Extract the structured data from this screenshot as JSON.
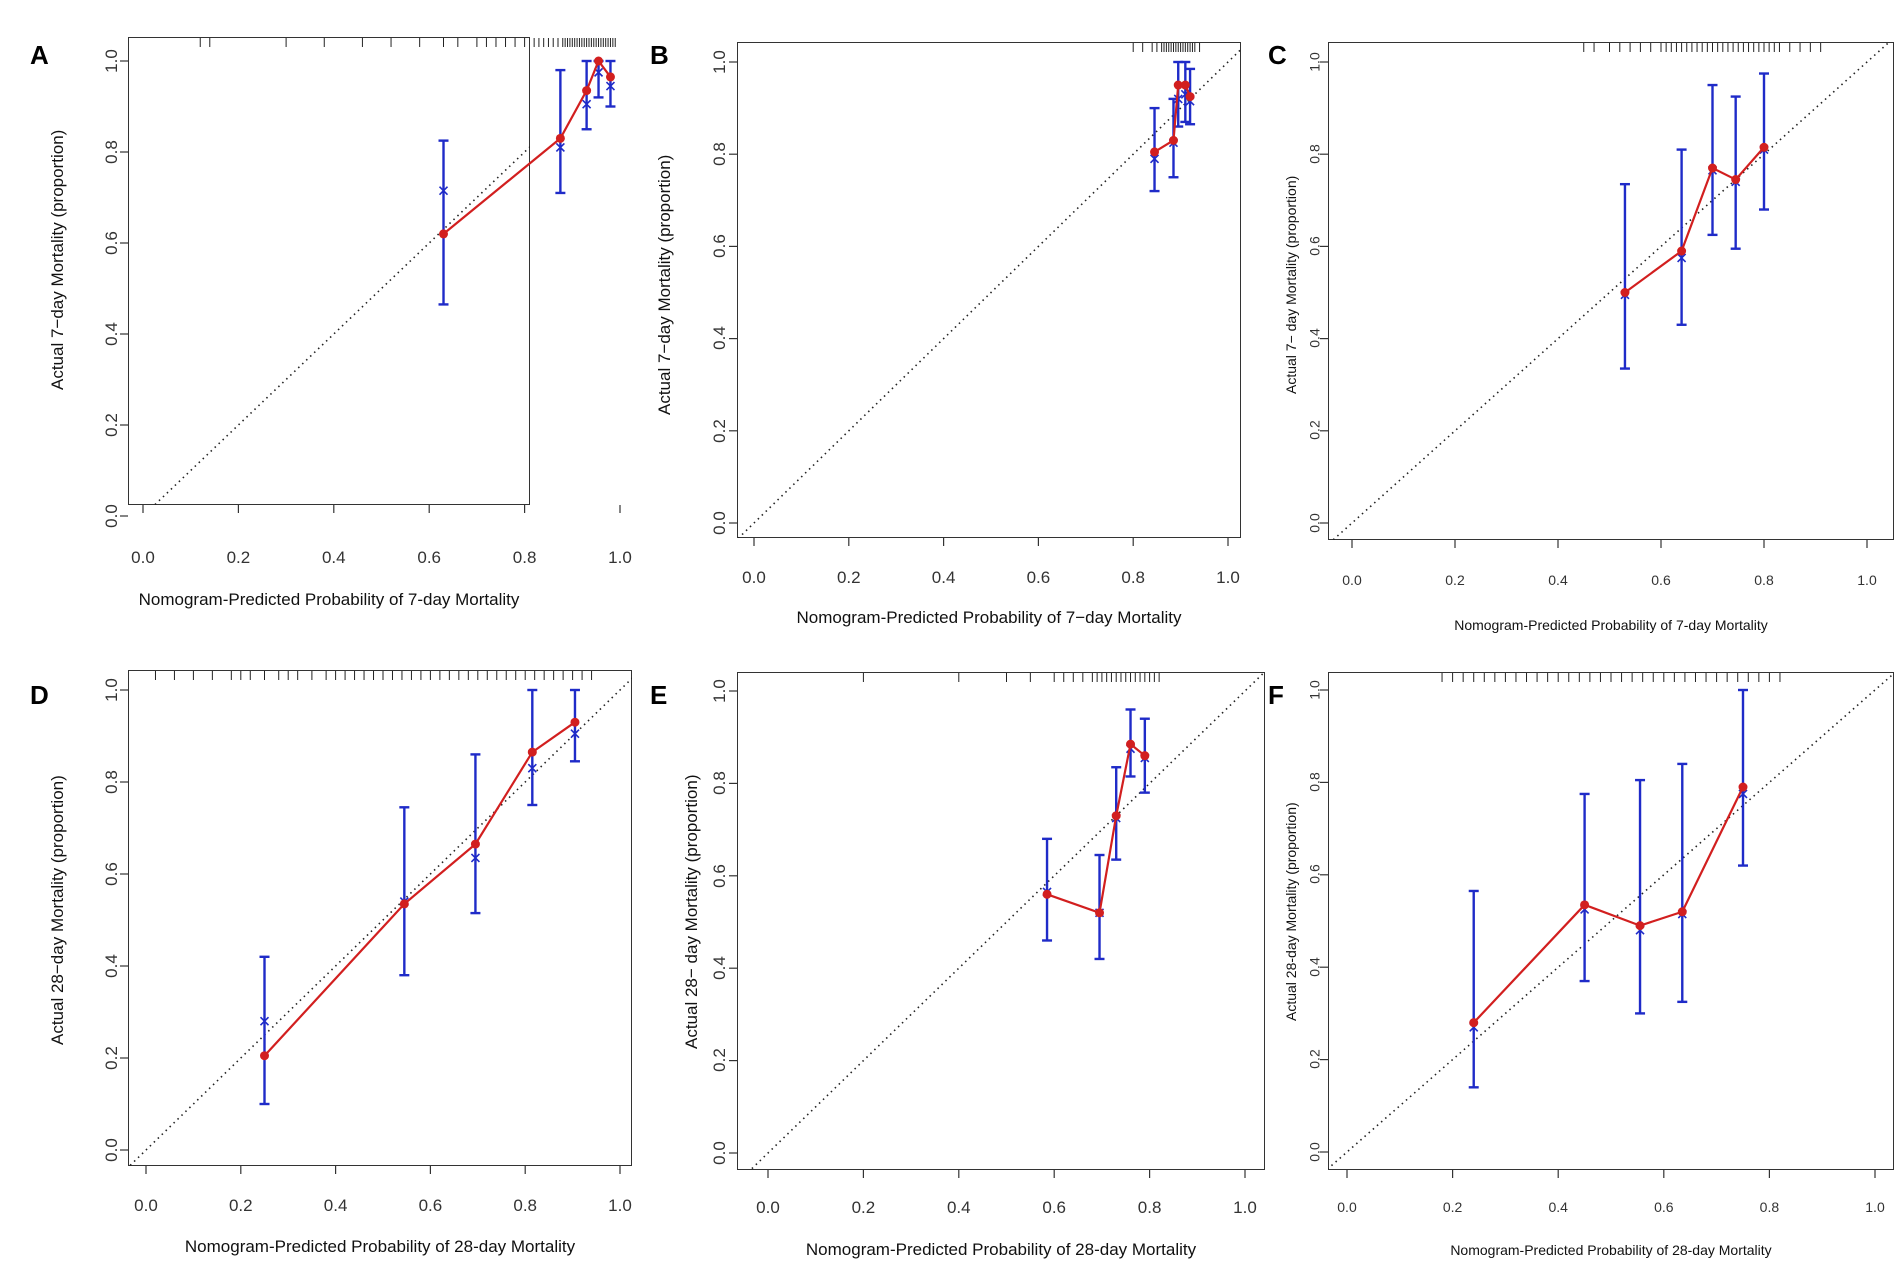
{
  "colors": {
    "observed": "#d21f1f",
    "errorbar": "#1f2bc8",
    "ideal": "#222222",
    "rug": "#222222"
  },
  "chart_data": [
    {
      "panel": "A",
      "type": "line",
      "xlabel": "Nomogram-Predicted Probability of 7-day Mortality",
      "ylabel": "Actual 7−day Mortality (proportion)",
      "xlim": [
        0,
        1
      ],
      "ylim": [
        0,
        1
      ],
      "xticks": [
        "0.0",
        "0.2",
        "0.4",
        "0.6",
        "0.8",
        "1.0"
      ],
      "yticks": [
        "0.0",
        "0.2",
        "0.4",
        "0.6",
        "0.8",
        "1.0"
      ],
      "x": [
        0.63,
        0.875,
        0.93,
        0.955,
        0.98
      ],
      "observed": [
        0.62,
        0.83,
        0.935,
        1.0,
        0.965
      ],
      "corrected": [
        0.715,
        0.81,
        0.905,
        0.975,
        0.945
      ],
      "ci_low": [
        0.465,
        0.71,
        0.85,
        0.92,
        0.9
      ],
      "ci_high": [
        0.825,
        0.98,
        1.0,
        1.0,
        1.0
      ],
      "rug": [
        0.12,
        0.14,
        0.3,
        0.38,
        0.46,
        0.52,
        0.58,
        0.63,
        0.66,
        0.7,
        0.72,
        0.74,
        0.76,
        0.78,
        0.8,
        0.82,
        0.83,
        0.84,
        0.85,
        0.86,
        0.87,
        0.88,
        0.885,
        0.89,
        0.895,
        0.9,
        0.905,
        0.91,
        0.915,
        0.92,
        0.925,
        0.93,
        0.935,
        0.94,
        0.945,
        0.95,
        0.955,
        0.96,
        0.965,
        0.97,
        0.975,
        0.98,
        0.985,
        0.99
      ]
    },
    {
      "panel": "B",
      "type": "line",
      "xlabel": "Nomogram-Predicted Probability of 7−day Mortality",
      "ylabel": "Actual 7−day Mortality (proportion)",
      "xlim": [
        0,
        1
      ],
      "ylim": [
        0,
        1
      ],
      "xticks": [
        "0.0",
        "0.2",
        "0.4",
        "0.6",
        "0.8",
        "1.0"
      ],
      "yticks": [
        "0.0",
        "0.2",
        "0.4",
        "0.6",
        "0.8",
        "1.0"
      ],
      "x": [
        0.845,
        0.885,
        0.895,
        0.91,
        0.92
      ],
      "observed": [
        0.805,
        0.83,
        0.95,
        0.95,
        0.925
      ],
      "corrected": [
        0.79,
        0.825,
        0.92,
        0.93,
        0.915
      ],
      "ci_low": [
        0.72,
        0.75,
        0.86,
        0.87,
        0.865
      ],
      "ci_high": [
        0.9,
        0.92,
        1.0,
        1.0,
        0.985
      ],
      "rug": [
        0.8,
        0.82,
        0.84,
        0.85,
        0.86,
        0.865,
        0.87,
        0.875,
        0.88,
        0.885,
        0.89,
        0.895,
        0.9,
        0.905,
        0.91,
        0.915,
        0.92,
        0.925,
        0.93,
        0.94
      ]
    },
    {
      "panel": "C",
      "type": "line",
      "xlabel": "Nomogram-Predicted Probability of 7-day Mortality",
      "ylabel": "Actual 7− day Mortality (proportion)",
      "xlim": [
        0,
        1
      ],
      "ylim": [
        0,
        1
      ],
      "xticks": [
        "0.0",
        "0.2",
        "0.4",
        "0.6",
        "0.8",
        "1.0"
      ],
      "yticks": [
        "0.0",
        "0.2",
        "0.4",
        "0.6",
        "0.8",
        "1.0"
      ],
      "x": [
        0.53,
        0.64,
        0.7,
        0.745,
        0.8
      ],
      "observed": [
        0.5,
        0.59,
        0.77,
        0.745,
        0.815
      ],
      "corrected": [
        0.495,
        0.575,
        0.765,
        0.74,
        0.81
      ],
      "ci_low": [
        0.335,
        0.43,
        0.625,
        0.595,
        0.68
      ],
      "ci_high": [
        0.735,
        0.81,
        0.95,
        0.925,
        0.975
      ],
      "rug": [
        0.45,
        0.47,
        0.5,
        0.52,
        0.54,
        0.56,
        0.58,
        0.6,
        0.61,
        0.62,
        0.63,
        0.64,
        0.65,
        0.66,
        0.67,
        0.68,
        0.69,
        0.7,
        0.71,
        0.72,
        0.73,
        0.74,
        0.75,
        0.76,
        0.77,
        0.78,
        0.79,
        0.8,
        0.81,
        0.82,
        0.83,
        0.85,
        0.87,
        0.89,
        0.91
      ]
    },
    {
      "panel": "D",
      "type": "line",
      "xlabel": "Nomogram-Predicted Probability of 28-day Mortality",
      "ylabel": "Actual 28−day Mortality (proportion)",
      "xlim": [
        0,
        1
      ],
      "ylim": [
        0,
        1
      ],
      "xticks": [
        "0.0",
        "0.2",
        "0.4",
        "0.6",
        "0.8",
        "1.0"
      ],
      "yticks": [
        "0.0",
        "0.2",
        "0.4",
        "0.6",
        "0.8",
        "1.0"
      ],
      "x": [
        0.25,
        0.545,
        0.695,
        0.815,
        0.905
      ],
      "observed": [
        0.205,
        0.535,
        0.665,
        0.865,
        0.93
      ],
      "corrected": [
        0.28,
        0.54,
        0.635,
        0.83,
        0.905
      ],
      "ci_low": [
        0.1,
        0.38,
        0.515,
        0.75,
        0.845
      ],
      "ci_high": [
        0.42,
        0.745,
        0.86,
        1.0,
        1.0
      ],
      "rug": [
        0.02,
        0.06,
        0.1,
        0.14,
        0.18,
        0.2,
        0.22,
        0.25,
        0.28,
        0.3,
        0.32,
        0.35,
        0.38,
        0.4,
        0.42,
        0.44,
        0.46,
        0.48,
        0.5,
        0.52,
        0.54,
        0.56,
        0.58,
        0.6,
        0.62,
        0.64,
        0.66,
        0.68,
        0.7,
        0.72,
        0.74,
        0.76,
        0.78,
        0.8,
        0.82,
        0.84,
        0.86,
        0.88,
        0.9,
        0.92,
        0.94
      ]
    },
    {
      "panel": "E",
      "type": "line",
      "xlabel": "Nomogram-Predicted Probability of 28-day Mortality",
      "ylabel": "Actual 28− day Mortality (proportion)",
      "xlim": [
        0,
        1
      ],
      "ylim": [
        0,
        1
      ],
      "xticks": [
        "0.0",
        "0.2",
        "0.4",
        "0.6",
        "0.8",
        "1.0"
      ],
      "yticks": [
        "0.0",
        "0.2",
        "0.4",
        "0.6",
        "0.8",
        "1.0"
      ],
      "x": [
        0.585,
        0.695,
        0.73,
        0.76,
        0.79
      ],
      "observed": [
        0.56,
        0.52,
        0.73,
        0.885,
        0.86
      ],
      "corrected": [
        0.565,
        0.52,
        0.725,
        0.875,
        0.855
      ],
      "ci_low": [
        0.46,
        0.42,
        0.635,
        0.815,
        0.78
      ],
      "ci_high": [
        0.68,
        0.645,
        0.835,
        0.96,
        0.94
      ],
      "rug": [
        0.2,
        0.4,
        0.5,
        0.55,
        0.6,
        0.62,
        0.64,
        0.66,
        0.68,
        0.69,
        0.7,
        0.71,
        0.72,
        0.73,
        0.74,
        0.75,
        0.76,
        0.77,
        0.78,
        0.79,
        0.8,
        0.81,
        0.82
      ]
    },
    {
      "panel": "F",
      "type": "line",
      "xlabel": "Nomogram-Predicted Probability of 28-day Mortality",
      "ylabel": "Actual 28-day Mortality (proportion)",
      "xlim": [
        0,
        1
      ],
      "ylim": [
        0,
        1
      ],
      "xticks": [
        "0.0",
        "0.2",
        "0.4",
        "0.6",
        "0.8",
        "1.0"
      ],
      "yticks": [
        "0.0",
        "0.2",
        "0.4",
        "0.6",
        "0.8",
        "1.0"
      ],
      "x": [
        0.24,
        0.45,
        0.555,
        0.635,
        0.75
      ],
      "observed": [
        0.28,
        0.535,
        0.49,
        0.52,
        0.79
      ],
      "corrected": [
        0.27,
        0.525,
        0.48,
        0.515,
        0.775
      ],
      "ci_low": [
        0.14,
        0.37,
        0.3,
        0.325,
        0.62
      ],
      "ci_high": [
        0.565,
        0.775,
        0.805,
        0.84,
        1.0
      ],
      "rug": [
        0.18,
        0.2,
        0.22,
        0.24,
        0.26,
        0.28,
        0.3,
        0.32,
        0.34,
        0.36,
        0.38,
        0.4,
        0.42,
        0.44,
        0.46,
        0.48,
        0.5,
        0.52,
        0.54,
        0.56,
        0.58,
        0.6,
        0.62,
        0.64,
        0.66,
        0.68,
        0.7,
        0.72,
        0.74,
        0.76,
        0.78,
        0.8,
        0.82
      ]
    }
  ]
}
